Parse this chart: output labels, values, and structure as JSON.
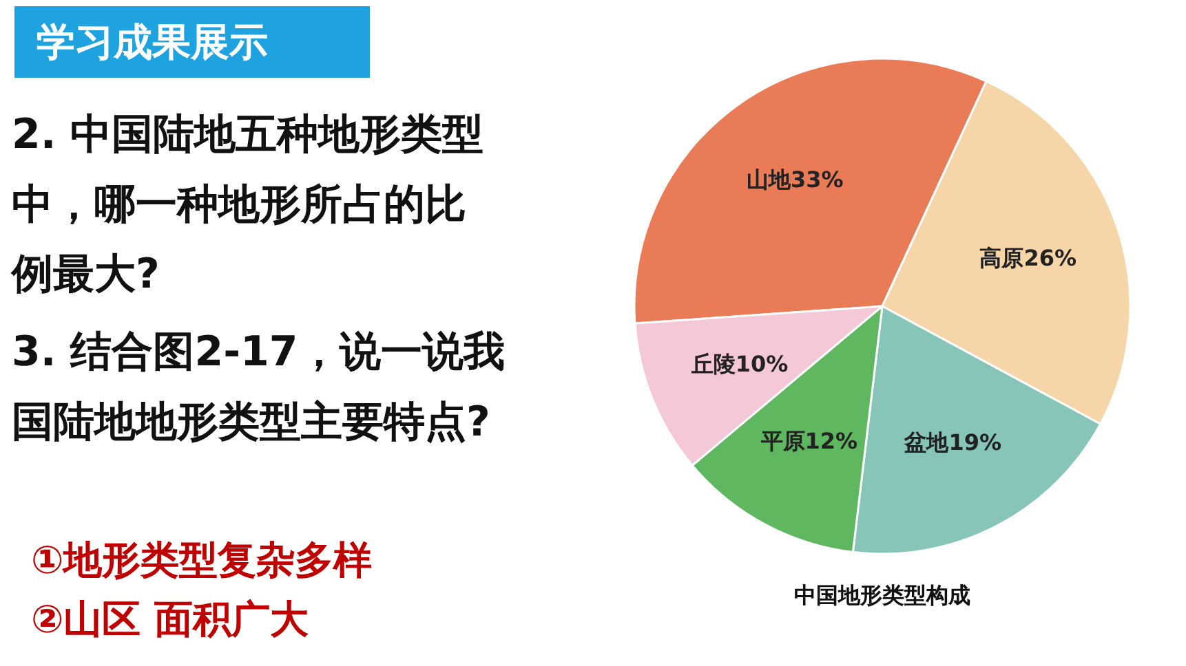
{
  "chart_data": {
    "type": "pie",
    "title": "中国地形类型构成",
    "categories": [
      "山地",
      "高原",
      "盆地",
      "平原",
      "丘陵"
    ],
    "values": [
      33,
      26,
      19,
      12,
      10
    ],
    "colors": [
      "#e97b56",
      "#f6d5a8",
      "#86c5b8",
      "#5fb760",
      "#f4c8d6"
    ],
    "value_labels": [
      "33%",
      "26%",
      "19%",
      "12%",
      "10%"
    ],
    "annotations": [
      "学习成果展示",
      "2. 中国陆地五种地形类型中，哪一种地形所占的比例最大?",
      "3. 结合图2-17，说一说我国陆地地形类型主要特点?",
      "①地形类型复杂多样",
      "②山区 面积广大"
    ]
  }
}
